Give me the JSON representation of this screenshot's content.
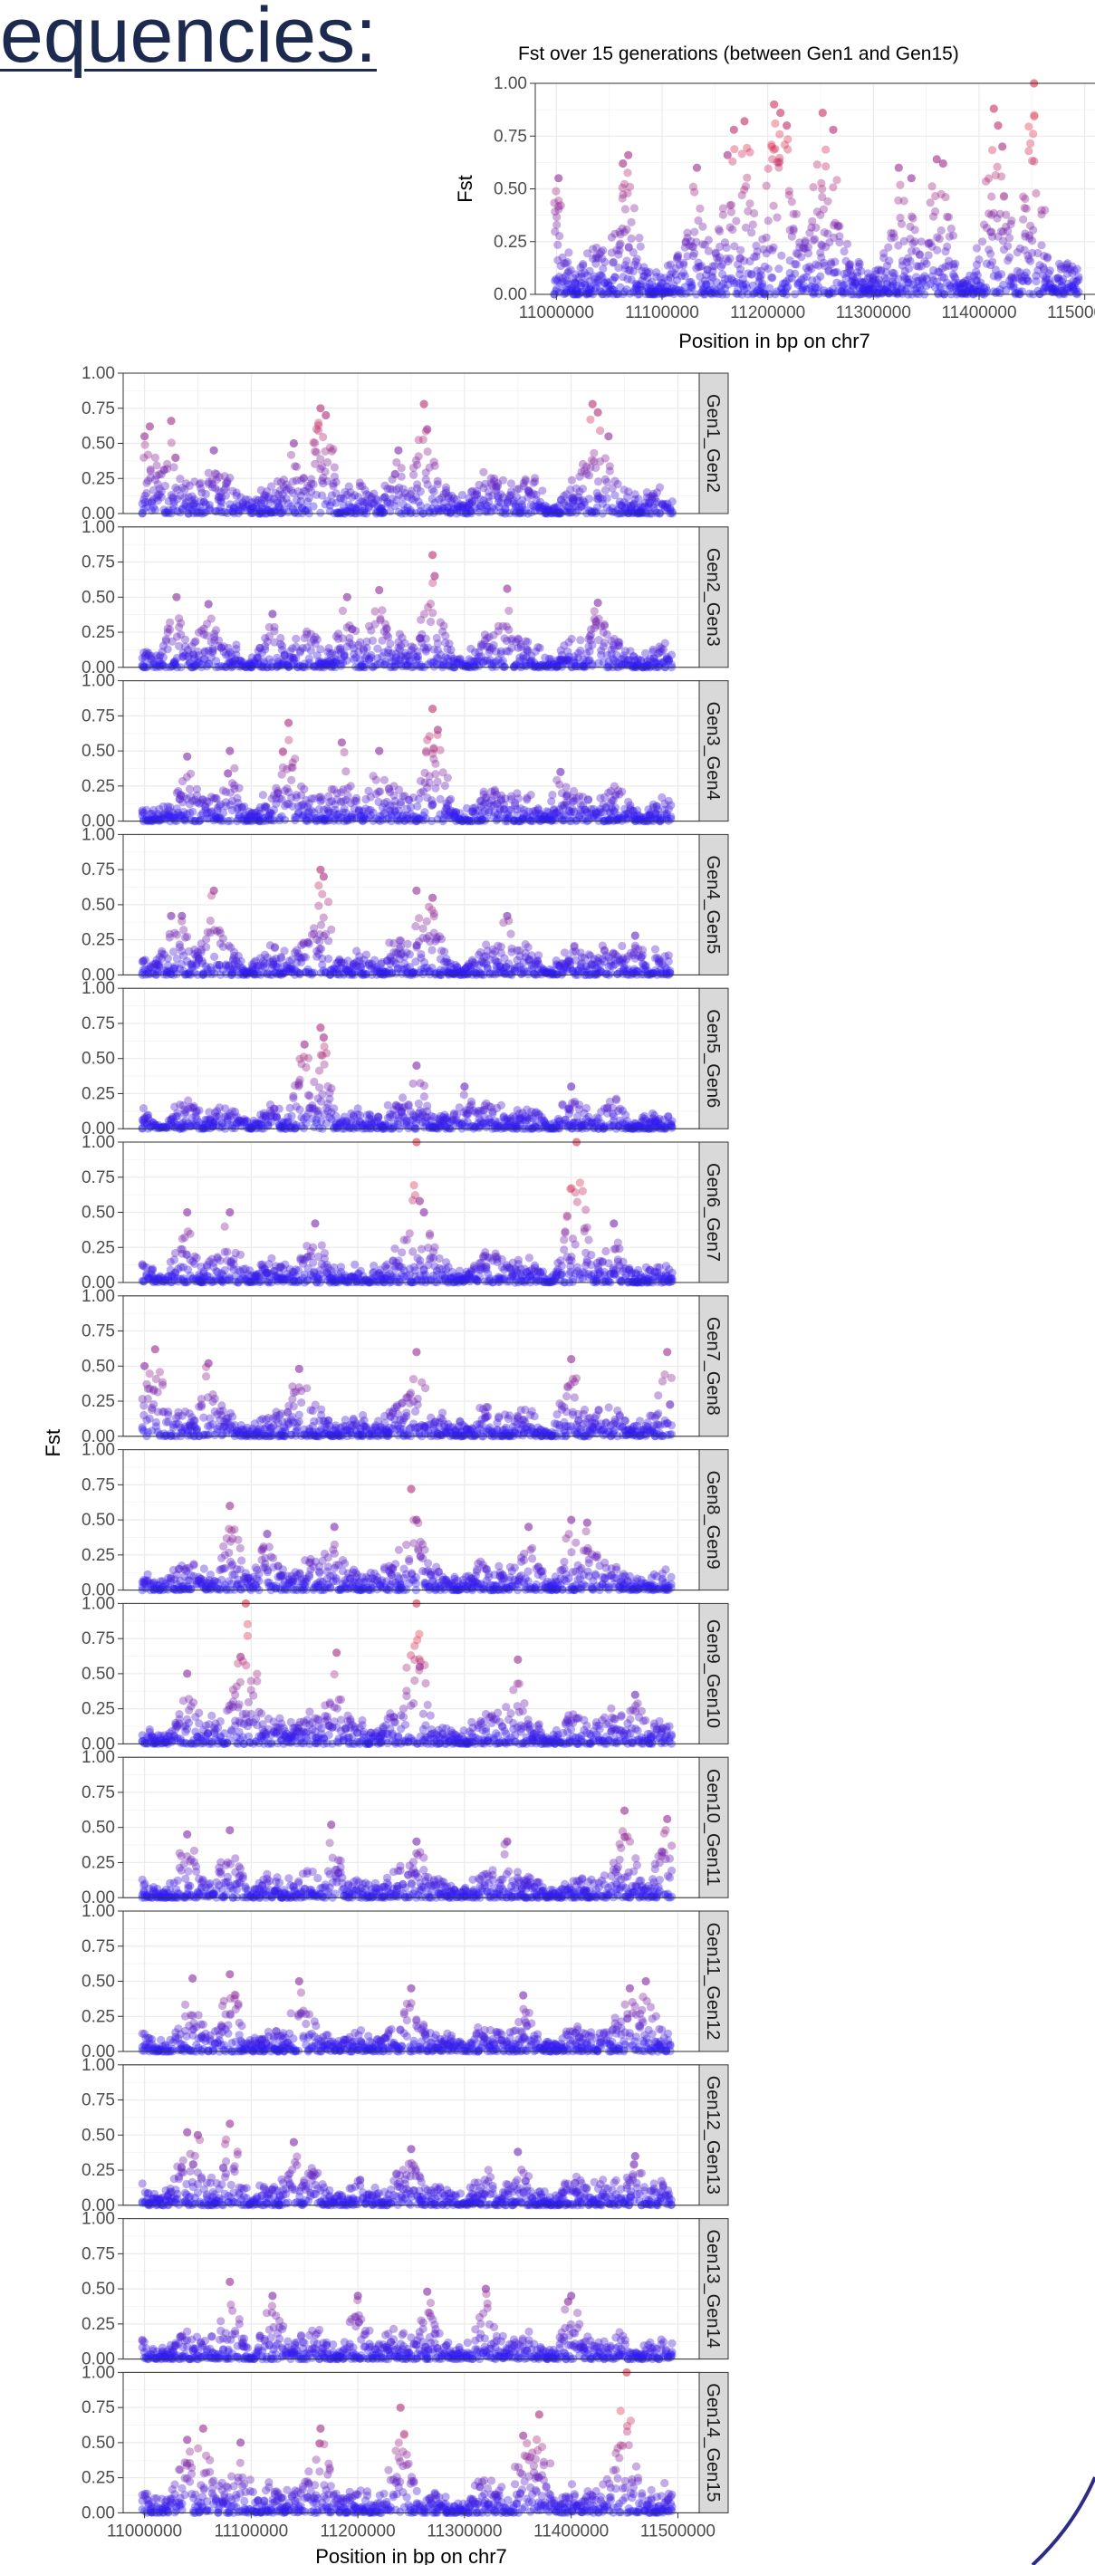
{
  "slide": {
    "heading": "equencies:",
    "accent_color": "#2d2b86"
  },
  "colors": {
    "point_low": "#2b1cf6",
    "point_high": "#e0314a",
    "panel_background": "#ffffff",
    "grid_color": "#ebebeb",
    "strip_background": "#d9d9d9"
  },
  "chart_data": [
    {
      "type": "scatter",
      "title": "Fst over 15 generations (between Gen1 and Gen15)",
      "xlabel": "Position in bp on chr7",
      "ylabel": "Fst",
      "xlim": [
        10980000,
        11520000
      ],
      "ylim": [
        0,
        1.0
      ],
      "x_ticks": [
        11000000,
        11100000,
        11200000,
        11300000,
        11400000,
        11500000
      ],
      "y_ticks": [
        0.0,
        0.25,
        0.5,
        0.75,
        1.0
      ],
      "x_tick_labels": [
        "11000000",
        "11100000",
        "11200000",
        "11300000",
        "11400000",
        "11500000"
      ],
      "y_tick_labels": [
        "0.00",
        "0.25",
        "0.50",
        "0.75",
        "1.00"
      ],
      "grid": true,
      "color_scale": "Fst value, blue (low) to red (high)",
      "series": [
        {
          "peaks": [
            [
              11002000,
              0.55
            ],
            [
              11063000,
              0.62
            ],
            [
              11068000,
              0.66
            ],
            [
              11133000,
              0.6
            ],
            [
              11162000,
              0.66
            ],
            [
              11168000,
              0.78
            ],
            [
              11178000,
              0.82
            ],
            [
              11206000,
              0.9
            ],
            [
              11212000,
              0.86
            ],
            [
              11218000,
              0.8
            ],
            [
              11252000,
              0.86
            ],
            [
              11262000,
              0.78
            ],
            [
              11324000,
              0.6
            ],
            [
              11336000,
              0.55
            ],
            [
              11360000,
              0.64
            ],
            [
              11366000,
              0.62
            ],
            [
              11414000,
              0.88
            ],
            [
              11418000,
              0.8
            ],
            [
              11422000,
              0.7
            ],
            [
              11452000,
              1.0
            ]
          ],
          "baseline": 0.24
        }
      ]
    },
    {
      "type": "scatter",
      "layout": "faceted vertical panels",
      "xlabel": "Position in bp on chr7",
      "ylabel": "Fst",
      "xlim": [
        10980000,
        11520000
      ],
      "ylim": [
        0,
        1.0
      ],
      "x_ticks": [
        11000000,
        11100000,
        11200000,
        11300000,
        11400000,
        11500000
      ],
      "y_ticks": [
        0.0,
        0.25,
        0.5,
        0.75,
        1.0
      ],
      "x_tick_labels": [
        "11000000",
        "11100000",
        "11200000",
        "11300000",
        "11400000",
        "11500000"
      ],
      "y_tick_labels": [
        "0.00",
        "0.25",
        "0.50",
        "0.75",
        "1.00"
      ],
      "grid": true,
      "series": [
        {
          "name": "Gen1_Gen2",
          "baseline": 0.28,
          "peaks": [
            [
              11000000,
              0.55
            ],
            [
              11005000,
              0.62
            ],
            [
              11025000,
              0.66
            ],
            [
              11065000,
              0.45
            ],
            [
              11140000,
              0.5
            ],
            [
              11165000,
              0.75
            ],
            [
              11170000,
              0.7
            ],
            [
              11238000,
              0.45
            ],
            [
              11262000,
              0.78
            ],
            [
              11265000,
              0.6
            ],
            [
              11420000,
              0.78
            ],
            [
              11425000,
              0.72
            ],
            [
              11435000,
              0.55
            ]
          ]
        },
        {
          "name": "Gen2_Gen3",
          "baseline": 0.22,
          "peaks": [
            [
              11030000,
              0.5
            ],
            [
              11060000,
              0.45
            ],
            [
              11120000,
              0.38
            ],
            [
              11190000,
              0.5
            ],
            [
              11220000,
              0.55
            ],
            [
              11270000,
              0.8
            ],
            [
              11272000,
              0.65
            ],
            [
              11340000,
              0.56
            ],
            [
              11425000,
              0.46
            ]
          ]
        },
        {
          "name": "Gen3_Gen4",
          "baseline": 0.22,
          "peaks": [
            [
              11040000,
              0.46
            ],
            [
              11080000,
              0.5
            ],
            [
              11135000,
              0.7
            ],
            [
              11185000,
              0.56
            ],
            [
              11220000,
              0.5
            ],
            [
              11270000,
              0.8
            ],
            [
              11275000,
              0.65
            ],
            [
              11390000,
              0.35
            ]
          ]
        },
        {
          "name": "Gen4_Gen5",
          "baseline": 0.22,
          "peaks": [
            [
              11025000,
              0.42
            ],
            [
              11035000,
              0.42
            ],
            [
              11065000,
              0.6
            ],
            [
              11165000,
              0.75
            ],
            [
              11168000,
              0.7
            ],
            [
              11255000,
              0.6
            ],
            [
              11270000,
              0.55
            ],
            [
              11340000,
              0.42
            ],
            [
              11460000,
              0.28
            ]
          ]
        },
        {
          "name": "Gen5_Gen6",
          "baseline": 0.18,
          "peaks": [
            [
              11150000,
              0.6
            ],
            [
              11165000,
              0.72
            ],
            [
              11168000,
              0.65
            ],
            [
              11255000,
              0.45
            ],
            [
              11300000,
              0.3
            ],
            [
              11400000,
              0.3
            ]
          ]
        },
        {
          "name": "Gen6_Gen7",
          "baseline": 0.2,
          "peaks": [
            [
              11040000,
              0.5
            ],
            [
              11080000,
              0.5
            ],
            [
              11160000,
              0.42
            ],
            [
              11255000,
              1.0
            ],
            [
              11258000,
              0.58
            ],
            [
              11262000,
              0.5
            ],
            [
              11405000,
              1.0
            ],
            [
              11440000,
              0.42
            ]
          ]
        },
        {
          "name": "Gen7_Gen8",
          "baseline": 0.22,
          "peaks": [
            [
              11000000,
              0.5
            ],
            [
              11010000,
              0.62
            ],
            [
              11060000,
              0.52
            ],
            [
              11145000,
              0.48
            ],
            [
              11255000,
              0.6
            ],
            [
              11400000,
              0.55
            ],
            [
              11490000,
              0.6
            ]
          ]
        },
        {
          "name": "Gen8_Gen9",
          "baseline": 0.2,
          "peaks": [
            [
              11080000,
              0.6
            ],
            [
              11115000,
              0.4
            ],
            [
              11178000,
              0.45
            ],
            [
              11250000,
              0.72
            ],
            [
              11255000,
              0.5
            ],
            [
              11360000,
              0.45
            ],
            [
              11400000,
              0.5
            ],
            [
              11415000,
              0.48
            ]
          ]
        },
        {
          "name": "Gen9_Gen10",
          "baseline": 0.22,
          "peaks": [
            [
              11040000,
              0.5
            ],
            [
              11090000,
              0.62
            ],
            [
              11095000,
              1.0
            ],
            [
              11180000,
              0.65
            ],
            [
              11255000,
              1.0
            ],
            [
              11258000,
              0.55
            ],
            [
              11350000,
              0.6
            ],
            [
              11460000,
              0.35
            ]
          ]
        },
        {
          "name": "Gen10_Gen11",
          "baseline": 0.18,
          "peaks": [
            [
              11040000,
              0.45
            ],
            [
              11080000,
              0.48
            ],
            [
              11175000,
              0.52
            ],
            [
              11255000,
              0.4
            ],
            [
              11340000,
              0.4
            ],
            [
              11450000,
              0.62
            ],
            [
              11490000,
              0.56
            ]
          ]
        },
        {
          "name": "Gen11_Gen12",
          "baseline": 0.2,
          "peaks": [
            [
              11045000,
              0.52
            ],
            [
              11080000,
              0.55
            ],
            [
              11145000,
              0.5
            ],
            [
              11250000,
              0.45
            ],
            [
              11355000,
              0.4
            ],
            [
              11455000,
              0.45
            ],
            [
              11470000,
              0.5
            ]
          ]
        },
        {
          "name": "Gen12_Gen13",
          "baseline": 0.22,
          "peaks": [
            [
              11040000,
              0.52
            ],
            [
              11050000,
              0.5
            ],
            [
              11080000,
              0.58
            ],
            [
              11140000,
              0.45
            ],
            [
              11250000,
              0.4
            ],
            [
              11350000,
              0.38
            ],
            [
              11460000,
              0.35
            ]
          ]
        },
        {
          "name": "Gen13_Gen14",
          "baseline": 0.2,
          "peaks": [
            [
              11080000,
              0.55
            ],
            [
              11120000,
              0.45
            ],
            [
              11200000,
              0.45
            ],
            [
              11265000,
              0.48
            ],
            [
              11320000,
              0.5
            ],
            [
              11400000,
              0.45
            ]
          ]
        },
        {
          "name": "Gen14_Gen15",
          "baseline": 0.24,
          "peaks": [
            [
              11040000,
              0.52
            ],
            [
              11055000,
              0.6
            ],
            [
              11090000,
              0.5
            ],
            [
              11165000,
              0.6
            ],
            [
              11240000,
              0.75
            ],
            [
              11355000,
              0.55
            ],
            [
              11370000,
              0.7
            ],
            [
              11452000,
              1.0
            ]
          ]
        }
      ]
    }
  ]
}
